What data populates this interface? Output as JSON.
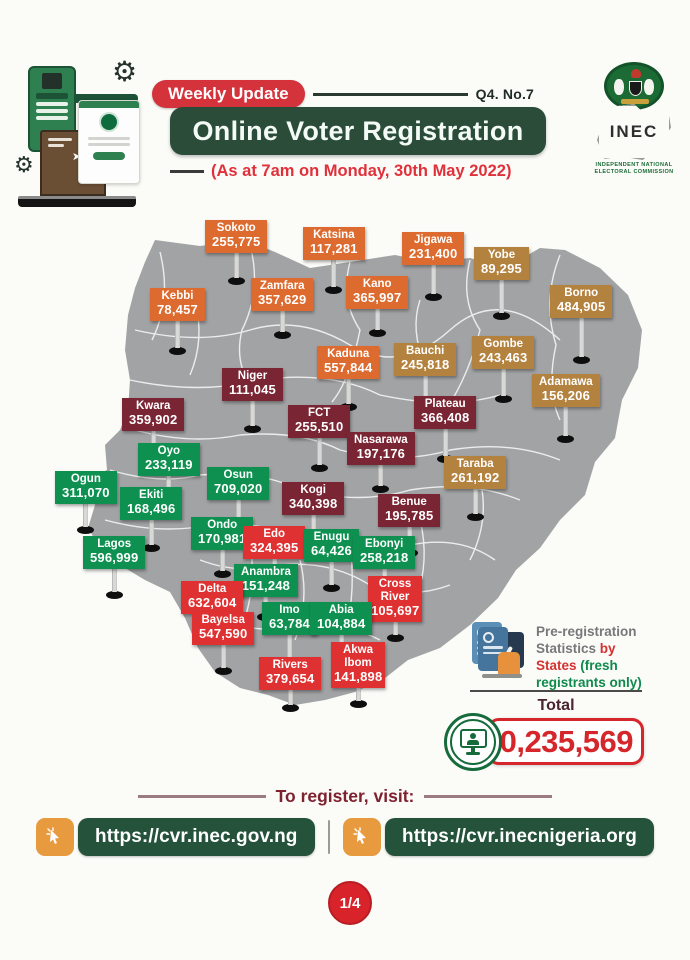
{
  "header": {
    "badge": "Weekly Update",
    "issue": "Q4. No.7",
    "title": "Online Voter Registration",
    "subtitle": "(As at 7am on Monday, 30th May 2022)"
  },
  "logo": {
    "acronym": "INEC",
    "caption_line1": "INDEPENDENT NATIONAL",
    "caption_line2": "ELECTORAL COMMISSION"
  },
  "legend": {
    "part1": "Pre-registration Statistics ",
    "part2": "by States ",
    "part3": "(fresh registrants only)"
  },
  "total": {
    "label": "Total",
    "value": "10,235,569"
  },
  "footer": {
    "cta": "To register, visit:",
    "url1": "https://cvr.inec.gov.ng",
    "url2": "https://cvr.inecnigeria.org",
    "page": "1/4"
  },
  "colors": {
    "orange": "#DD6A2E",
    "tan": "#B4823F",
    "maroon": "#7A2533",
    "green": "#0E9150",
    "red": "#E03132",
    "banner_green": "#2A4C39",
    "badge_red": "#D4333C",
    "accent_red": "#D5272B",
    "map_gray": "#A2A3A5"
  },
  "chart_data": {
    "type": "table",
    "title": "Online Voter Registration",
    "subtitle": "(As at 7am on Monday, 30th May 2022)",
    "description": "Pre-registration statistics by states (fresh registrants only), shown as flags on a map of Nigeria",
    "unit": "registrants",
    "total": 10235569,
    "total_display": "10,235,569",
    "states": [
      {
        "name": "Sokoto",
        "value": "255,775",
        "num": 255775,
        "group": "orange"
      },
      {
        "name": "Katsina",
        "value": "117,281",
        "num": 117281,
        "group": "orange"
      },
      {
        "name": "Jigawa",
        "value": "231,400",
        "num": 231400,
        "group": "orange"
      },
      {
        "name": "Yobe",
        "value": "89,295",
        "num": 89295,
        "group": "tan"
      },
      {
        "name": "Kebbi",
        "value": "78,457",
        "num": 78457,
        "group": "orange"
      },
      {
        "name": "Zamfara",
        "value": "357,629",
        "num": 357629,
        "group": "orange"
      },
      {
        "name": "Kano",
        "value": "365,997",
        "num": 365997,
        "group": "orange"
      },
      {
        "name": "Borno",
        "value": "484,905",
        "num": 484905,
        "group": "tan"
      },
      {
        "name": "Gombe",
        "value": "243,463",
        "num": 243463,
        "group": "tan"
      },
      {
        "name": "Bauchi",
        "value": "245,818",
        "num": 245818,
        "group": "tan"
      },
      {
        "name": "Kaduna",
        "value": "557,844",
        "num": 557844,
        "group": "orange"
      },
      {
        "name": "Niger",
        "value": "111,045",
        "num": 111045,
        "group": "maroon"
      },
      {
        "name": "Adamawa",
        "value": "156,206",
        "num": 156206,
        "group": "tan"
      },
      {
        "name": "Plateau",
        "value": "366,408",
        "num": 366408,
        "group": "maroon"
      },
      {
        "name": "Kwara",
        "value": "359,902",
        "num": 359902,
        "group": "maroon"
      },
      {
        "name": "FCT",
        "value": "255,510",
        "num": 255510,
        "group": "maroon"
      },
      {
        "name": "Nasarawa",
        "value": "197,176",
        "num": 197176,
        "group": "maroon"
      },
      {
        "name": "Oyo",
        "value": "233,119",
        "num": 233119,
        "group": "green"
      },
      {
        "name": "Taraba",
        "value": "261,192",
        "num": 261192,
        "group": "tan"
      },
      {
        "name": "Osun",
        "value": "709,020",
        "num": 709020,
        "group": "green"
      },
      {
        "name": "Ogun",
        "value": "311,070",
        "num": 311070,
        "group": "green"
      },
      {
        "name": "Kogi",
        "value": "340,398",
        "num": 340398,
        "group": "maroon"
      },
      {
        "name": "Ekiti",
        "value": "168,496",
        "num": 168496,
        "group": "green"
      },
      {
        "name": "Benue",
        "value": "195,785",
        "num": 195785,
        "group": "maroon"
      },
      {
        "name": "Ondo",
        "value": "170,981",
        "num": 170981,
        "group": "green"
      },
      {
        "name": "Edo",
        "value": "324,395",
        "num": 324395,
        "group": "red"
      },
      {
        "name": "Enugu",
        "value": "64,426",
        "num": 64426,
        "group": "green"
      },
      {
        "name": "Lagos",
        "value": "596,999",
        "num": 596999,
        "group": "green"
      },
      {
        "name": "Ebonyi",
        "value": "258,218",
        "num": 258218,
        "group": "green"
      },
      {
        "name": "Anambra",
        "value": "151,248",
        "num": 151248,
        "group": "green"
      },
      {
        "name": "Cross River",
        "value": "105,697",
        "num": 105697,
        "group": "red"
      },
      {
        "name": "Delta",
        "value": "632,604",
        "num": 632604,
        "group": "red"
      },
      {
        "name": "Imo",
        "value": "63,784",
        "num": 63784,
        "group": "green"
      },
      {
        "name": "Abia",
        "value": "104,884",
        "num": 104884,
        "group": "green"
      },
      {
        "name": "Bayelsa",
        "value": "547,590",
        "num": 547590,
        "group": "red"
      },
      {
        "name": "Akwa Ibom",
        "value": "141,898",
        "num": 141898,
        "group": "red"
      },
      {
        "name": "Rivers",
        "value": "379,654",
        "num": 379654,
        "group": "red"
      }
    ]
  }
}
